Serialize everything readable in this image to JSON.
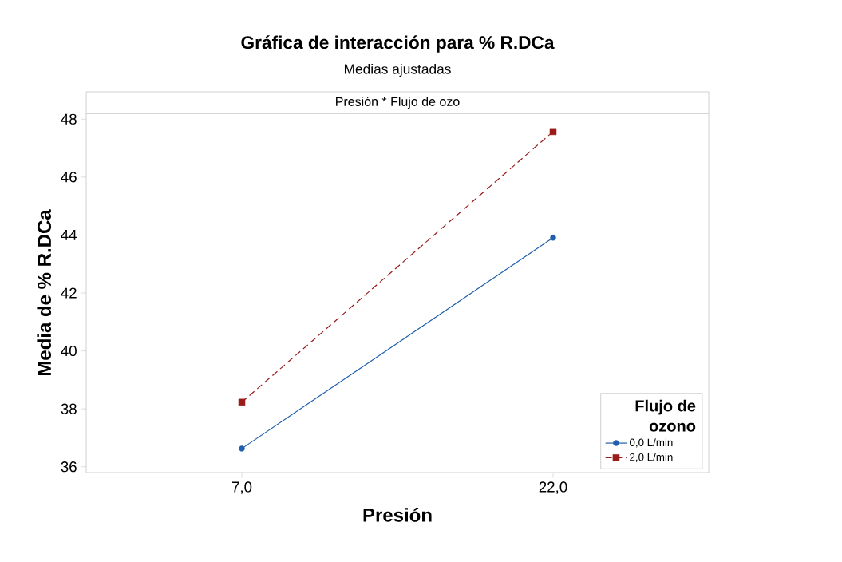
{
  "chart_data": {
    "type": "line",
    "title": "Gráfica de interacción para % R.DCa",
    "subtitle": "Medias ajustadas",
    "annotations": [
      "Presión * Flujo de ozo"
    ],
    "xlabel": "Presión",
    "ylabel": "Media de % R.DCa",
    "legend_title": "Flujo de ozono",
    "x": [
      7,
      22
    ],
    "xlim": [
      -0.5,
      29.5
    ],
    "xticks": [
      {
        "value": 7,
        "label": "7,0"
      },
      {
        "value": 22,
        "label": "22,0"
      }
    ],
    "series": [
      {
        "name": "0,0 L/min",
        "color": "#1f5fad",
        "values": [
          36.63,
          43.91
        ],
        "marker": "circle",
        "line_style": "solid"
      },
      {
        "name": "2,0 L/min",
        "color": "#9b1b1b",
        "values": [
          38.23,
          47.57
        ],
        "marker": "square",
        "line_style": "dashed"
      }
    ],
    "ylim": [
      35.8,
      48.2
    ],
    "yticks": [
      36,
      38,
      40,
      42,
      44,
      46,
      48
    ],
    "legend": "bottom right"
  }
}
